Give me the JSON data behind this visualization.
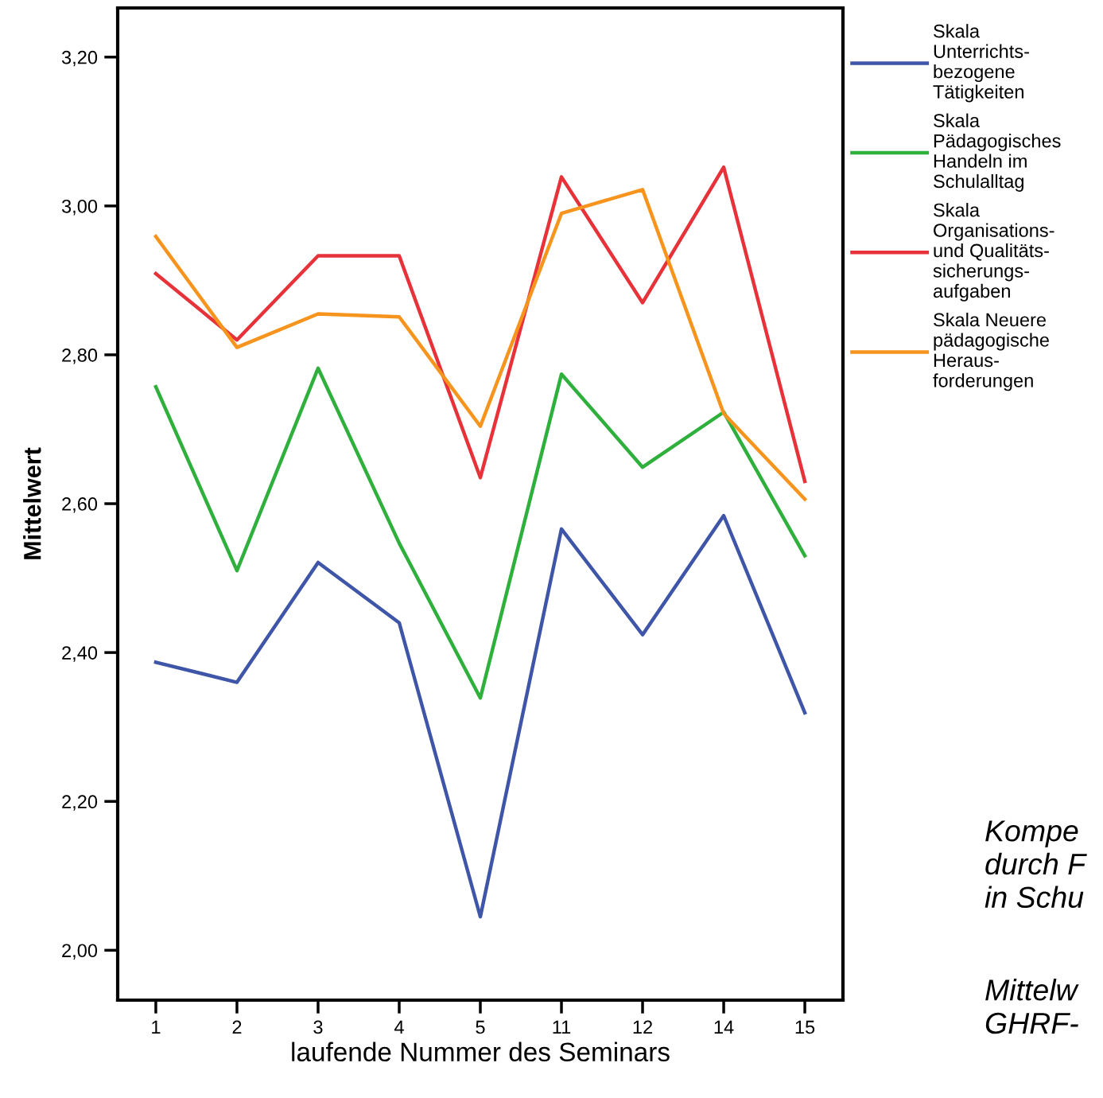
{
  "chart_data": {
    "type": "line",
    "xlabel": "laufende Nummer des Seminars",
    "ylabel": "Mittelwert",
    "categories": [
      "1",
      "2",
      "3",
      "4",
      "5",
      "11",
      "12",
      "14",
      "15"
    ],
    "series": [
      {
        "name": "Skala\nUnterrichts-\nbezogene\nTätigkeiten",
        "color": "#3f56a8",
        "values": [
          2.387,
          2.36,
          2.521,
          2.44,
          2.045,
          2.566,
          2.424,
          2.584,
          2.319
        ]
      },
      {
        "name": "Skala\nPädagogisches\nHandeln im\nSchulalltag",
        "color": "#2fb03c",
        "values": [
          2.757,
          2.51,
          2.782,
          2.547,
          2.339,
          2.774,
          2.649,
          2.723,
          2.53
        ]
      },
      {
        "name": "Skala\nOrganisations-\nund Qualitäts-\nsicherungs-\naufgaben",
        "color": "#e8323a",
        "values": [
          2.909,
          2.82,
          2.933,
          2.933,
          2.635,
          3.039,
          2.87,
          3.052,
          2.63
        ]
      },
      {
        "name": "Skala Neuere\npädagogische\nHeraus-\nforderungen",
        "color": "#f7941d",
        "values": [
          2.959,
          2.81,
          2.855,
          2.851,
          2.704,
          2.99,
          3.022,
          2.721,
          2.606
        ]
      }
    ],
    "ylim": [
      1.933,
      3.266
    ],
    "yticks": [
      {
        "value": 2,
        "label": "2,00"
      },
      {
        "value": 2.2,
        "label": "2,20"
      },
      {
        "value": 2.4,
        "label": "2,40"
      },
      {
        "value": 2.6,
        "label": "2,60"
      },
      {
        "value": 2.8,
        "label": "2,80"
      },
      {
        "value": 3.0,
        "label": "3,00"
      },
      {
        "value": 3.2,
        "label": "3,20"
      }
    ],
    "grid": false,
    "legend": "right",
    "marker": "none",
    "line_style": "solid",
    "annotations": [
      "Kompe\ndurch F\nin Schu",
      "Mittelw\nGHRF-"
    ]
  }
}
